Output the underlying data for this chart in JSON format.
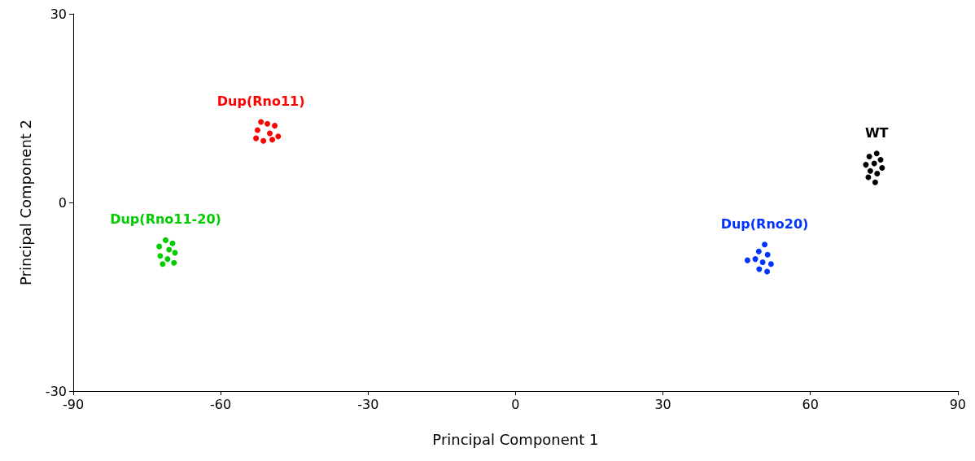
{
  "chart_data": {
    "type": "scatter",
    "xlabel": "Principal Component 1",
    "ylabel": "Principal Component 2",
    "xlim": [
      -90,
      90
    ],
    "xticks": [
      -90,
      -60,
      -30,
      0,
      30,
      60,
      90
    ],
    "ylim": [
      -30,
      30
    ],
    "yticks": [
      -30,
      0,
      30
    ],
    "grid": false,
    "legend": false,
    "marker": "circle",
    "series": [
      {
        "name": "Dup(Rno11)",
        "color": "#ff0000",
        "x": [
          -50.5,
          -49.0,
          -52.5,
          -50.0,
          -48.3,
          -52.8,
          -51.3,
          -49.5,
          -51.8
        ],
        "values": [
          12.5,
          12.2,
          11.5,
          11.0,
          10.5,
          10.2,
          9.8,
          10.0,
          12.8
        ]
      },
      {
        "name": "Dup(Rno11-20)",
        "color": "#00cc00",
        "x": [
          -71.2,
          -69.8,
          -72.5,
          -70.5,
          -69.3,
          -72.3,
          -70.8,
          -69.5,
          -71.8
        ],
        "values": [
          -6.0,
          -6.5,
          -7.0,
          -7.5,
          -8.0,
          -8.5,
          -9.0,
          -9.6,
          -9.8
        ]
      },
      {
        "name": "Dup(Rno20)",
        "color": "#0033ff",
        "x": [
          50.7,
          49.5,
          51.3,
          47.2,
          48.8,
          50.3,
          52.0,
          49.6,
          51.2
        ],
        "values": [
          -6.7,
          -7.8,
          -8.3,
          -9.2,
          -9.0,
          -9.5,
          -9.8,
          -10.6,
          -11.0
        ]
      },
      {
        "name": "WT",
        "color": "#000000",
        "x": [
          73.5,
          72.0,
          74.3,
          71.3,
          73.0,
          74.6,
          72.2,
          73.6,
          71.8,
          73.2
        ],
        "values": [
          7.8,
          7.3,
          6.8,
          6.0,
          6.2,
          5.5,
          5.0,
          4.6,
          4.0,
          3.2
        ]
      }
    ]
  }
}
